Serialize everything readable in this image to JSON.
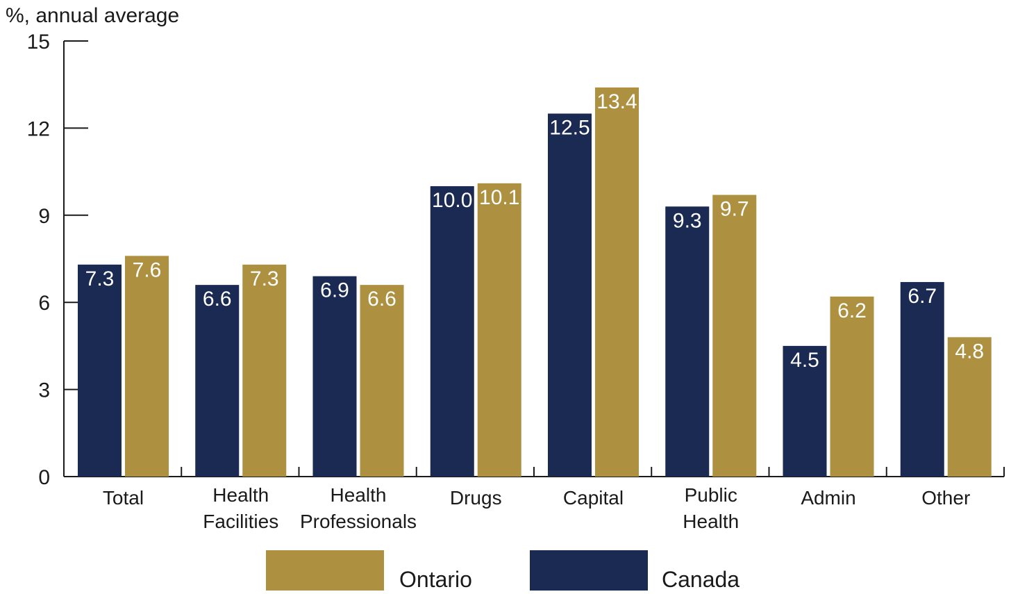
{
  "chart_data": {
    "type": "bar",
    "ylabel": "%, annual average",
    "ylim": [
      0,
      15
    ],
    "yticks": [
      0,
      3,
      6,
      9,
      12,
      15
    ],
    "categories": [
      [
        "Total"
      ],
      [
        "Health",
        "Facilities"
      ],
      [
        "Health",
        "Professionals"
      ],
      [
        "Drugs"
      ],
      [
        "Capital"
      ],
      [
        "Public",
        "Health"
      ],
      [
        "Admin"
      ],
      [
        "Other"
      ]
    ],
    "series": [
      {
        "name": "Canada",
        "color": "#1b2a52",
        "values": [
          7.3,
          6.6,
          6.9,
          10.0,
          12.5,
          9.3,
          4.5,
          6.7
        ],
        "labels": [
          "7.3",
          "6.6",
          "6.9",
          "10.0",
          "12.5",
          "9.3",
          "4.5",
          "6.7"
        ]
      },
      {
        "name": "Ontario",
        "color": "#ad9140",
        "values": [
          7.6,
          7.3,
          6.6,
          10.1,
          13.4,
          9.7,
          6.2,
          4.8
        ],
        "labels": [
          "7.6",
          "7.3",
          "6.6",
          "10.1",
          "13.4",
          "9.7",
          "6.2",
          "4.8"
        ]
      }
    ],
    "legend": {
      "position": "bottom",
      "order": [
        "Ontario",
        "Canada"
      ]
    },
    "grid": false
  }
}
